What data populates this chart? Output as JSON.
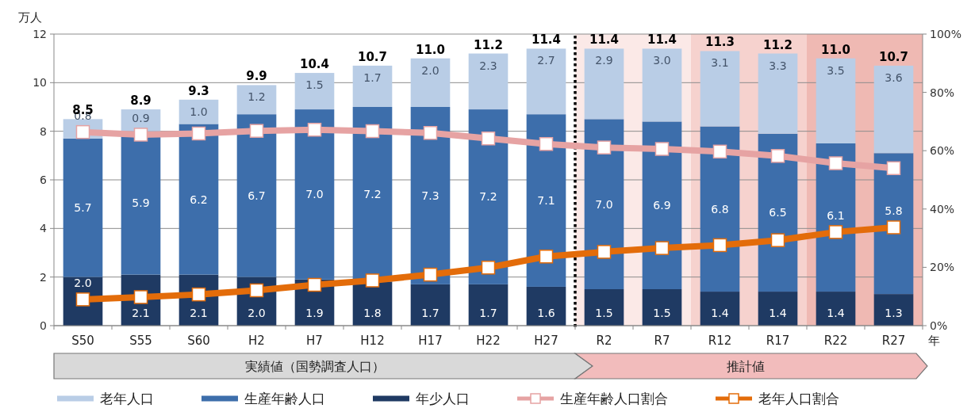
{
  "chart_data": {
    "type": "bar",
    "stacked": true,
    "ylabel": "万人",
    "xlabel": "年",
    "categories": [
      "S50",
      "S55",
      "S60",
      "H2",
      "H7",
      "H12",
      "H17",
      "H22",
      "H27",
      "R2",
      "R7",
      "R12",
      "R17",
      "R22",
      "R27"
    ],
    "series": [
      {
        "name": "年少人口",
        "color": "#1f3a63",
        "values": [
          2.0,
          2.1,
          2.1,
          2.0,
          1.9,
          1.8,
          1.7,
          1.7,
          1.6,
          1.5,
          1.5,
          1.4,
          1.4,
          1.4,
          1.3
        ],
        "value_labels": [
          "2.0",
          "2.1",
          "2.1",
          "2.0",
          "1.9",
          "1.8",
          "1.7",
          "1.7",
          "1.6",
          "1.5",
          "1.5",
          "1.4",
          "1.4",
          "1.4",
          "1.3"
        ]
      },
      {
        "name": "生産年齢人口",
        "color": "#3d6eab",
        "values": [
          5.7,
          5.9,
          6.2,
          6.7,
          7.0,
          7.2,
          7.3,
          7.2,
          7.1,
          7.0,
          6.9,
          6.8,
          6.5,
          6.1,
          5.8
        ],
        "value_labels": [
          "5.7",
          "5.9",
          "6.2",
          "6.7",
          "7.0",
          "7.2",
          "7.3",
          "7.2",
          "7.1",
          "7.0",
          "6.9",
          "6.8",
          "6.5",
          "6.1",
          "5.8"
        ]
      },
      {
        "name": "老年人口",
        "color": "#b9cde6",
        "values": [
          0.8,
          0.9,
          1.0,
          1.2,
          1.5,
          1.7,
          2.0,
          2.3,
          2.7,
          2.9,
          3.0,
          3.1,
          3.3,
          3.5,
          3.6
        ],
        "value_labels": [
          "0.8",
          "0.9",
          "1.0",
          "1.2",
          "1.5",
          "1.7",
          "2.0",
          "2.3",
          "2.7",
          "2.9",
          "3.0",
          "3.1",
          "3.3",
          "3.5",
          "3.6"
        ]
      },
      {
        "name": "生産年齢人口割合",
        "type": "line",
        "axis": "y2",
        "color": "#e6a3a3",
        "values": [
          66.4,
          65.5,
          65.9,
          66.8,
          67.2,
          66.7,
          66.1,
          64.2,
          62.3,
          61.1,
          60.6,
          59.7,
          58.2,
          55.7,
          54.0
        ]
      },
      {
        "name": "老年人口割合",
        "type": "line",
        "axis": "y2",
        "color": "#e36c0a",
        "values": [
          9.0,
          9.8,
          10.7,
          12.1,
          14.0,
          15.5,
          17.5,
          19.9,
          23.7,
          25.3,
          26.6,
          27.6,
          29.3,
          32.1,
          33.7
        ]
      }
    ],
    "totals": [
      "8.5",
      "8.9",
      "9.3",
      "9.9",
      "10.4",
      "10.7",
      "11.0",
      "11.2",
      "11.4",
      "11.4",
      "11.4",
      "11.3",
      "11.2",
      "11.0",
      "10.7"
    ],
    "ylim": [
      0,
      12
    ],
    "yticks": [
      0,
      2,
      4,
      6,
      8,
      10,
      12
    ],
    "y2lim": [
      0,
      100
    ],
    "y2ticks": [
      {
        "value": 0,
        "label": "0%"
      },
      {
        "value": 20,
        "label": "20%"
      },
      {
        "value": 40,
        "label": "40%"
      },
      {
        "value": 60,
        "label": "60%"
      },
      {
        "value": 80,
        "label": "80%"
      },
      {
        "value": 100,
        "label": "100%"
      }
    ],
    "grid": "y",
    "legend": "bottom",
    "marker": "square",
    "line_style": "solid",
    "bands": [
      {
        "axis": "x",
        "from": "R2",
        "to": "R7",
        "color": "#fbe9e7"
      },
      {
        "axis": "x",
        "from": "R12",
        "to": "R17",
        "color": "#f6d2ce"
      },
      {
        "axis": "x",
        "from": "R22",
        "to": "R27",
        "color": "#efb9b3"
      }
    ],
    "annotations": [
      "実績値（国勢調査人口）",
      "推計値"
    ]
  }
}
